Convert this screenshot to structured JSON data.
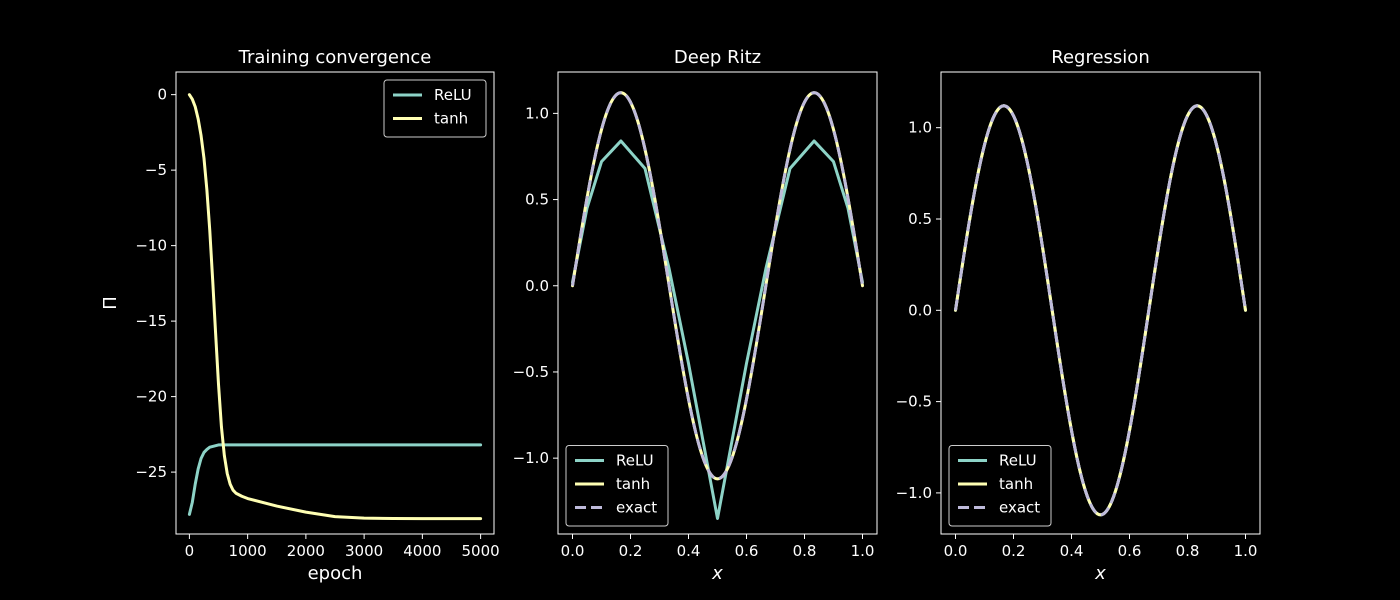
{
  "figure": {
    "background": "#000000",
    "foreground": "#ffffff"
  },
  "chart_data": [
    {
      "type": "line",
      "title": "Training convergence",
      "xlabel": "epoch",
      "ylabel": "Π",
      "xlim": [
        -230,
        5230
      ],
      "ylim": [
        -29.1,
        1.5
      ],
      "xticks": [
        0,
        1000,
        2000,
        3000,
        4000,
        5000
      ],
      "xtick_labels": [
        "0",
        "1000",
        "2000",
        "3000",
        "4000",
        "5000"
      ],
      "yticks": [
        0,
        -5,
        -10,
        -15,
        -20,
        -25
      ],
      "ytick_labels": [
        "0",
        "−5",
        "−10",
        "−15",
        "−20",
        "−25"
      ],
      "legend_position": "upper right",
      "grid": false,
      "series": [
        {
          "name": "ReLU",
          "color": "#8dd3c7",
          "dashed": false,
          "x": [
            0,
            50,
            100,
            150,
            200,
            250,
            300,
            350,
            400,
            450,
            500,
            600,
            800,
            1000,
            2000,
            3000,
            4000,
            5000
          ],
          "y": [
            -27.8,
            -27.0,
            -25.8,
            -24.8,
            -24.1,
            -23.7,
            -23.5,
            -23.35,
            -23.3,
            -23.25,
            -23.2,
            -23.2,
            -23.2,
            -23.2,
            -23.2,
            -23.2,
            -23.2,
            -23.2
          ]
        },
        {
          "name": "tanh",
          "color": "#ffffb3",
          "dashed": false,
          "x": [
            0,
            50,
            100,
            150,
            200,
            250,
            300,
            350,
            400,
            450,
            500,
            550,
            600,
            650,
            700,
            750,
            800,
            900,
            1000,
            1500,
            2000,
            2500,
            3000,
            3500,
            4000,
            4500,
            5000
          ],
          "y": [
            0,
            -0.3,
            -0.8,
            -1.6,
            -2.7,
            -4.2,
            -6.3,
            -9.0,
            -12.3,
            -15.8,
            -19.2,
            -22.0,
            -23.9,
            -25.1,
            -25.8,
            -26.2,
            -26.4,
            -26.6,
            -26.75,
            -27.25,
            -27.65,
            -27.95,
            -28.05,
            -28.07,
            -28.08,
            -28.08,
            -28.08
          ]
        }
      ]
    },
    {
      "type": "line",
      "title": "Deep Ritz",
      "xlabel": "x",
      "ylabel": "",
      "xlim": [
        -0.05,
        1.05
      ],
      "ylim": [
        -1.44,
        1.24
      ],
      "xticks": [
        0,
        0.2,
        0.4,
        0.6,
        0.8,
        1.0
      ],
      "xtick_labels": [
        "0.0",
        "0.2",
        "0.4",
        "0.6",
        "0.8",
        "1.0"
      ],
      "yticks": [
        1.0,
        0.5,
        0.0,
        -0.5,
        -1.0
      ],
      "ytick_labels": [
        "1.0",
        "0.5",
        "0.0",
        "−0.5",
        "−1.0"
      ],
      "legend_position": "lower left",
      "grid": false,
      "series": [
        {
          "name": "ReLU",
          "color": "#8dd3c7",
          "dashed": false,
          "x": [
            0,
            0.05,
            0.1,
            0.167,
            0.25,
            0.333,
            0.4,
            0.45,
            0.5,
            0.55,
            0.6,
            0.667,
            0.75,
            0.833,
            0.9,
            0.95,
            1.0
          ],
          "y": [
            0.02,
            0.45,
            0.72,
            0.84,
            0.68,
            0.1,
            -0.45,
            -0.9,
            -1.35,
            -0.9,
            -0.45,
            0.1,
            0.68,
            0.84,
            0.72,
            0.45,
            0.02
          ]
        },
        {
          "name": "tanh",
          "color": "#ffffb3",
          "dashed": false,
          "function": "exact"
        },
        {
          "name": "exact",
          "color": "#bebada",
          "dashed": true,
          "function": "exact"
        }
      ]
    },
    {
      "type": "line",
      "title": "Regression",
      "xlabel": "x",
      "ylabel": "",
      "xlim": [
        -0.05,
        1.05
      ],
      "ylim": [
        -1.225,
        1.305
      ],
      "xticks": [
        0,
        0.2,
        0.4,
        0.6,
        0.8,
        1.0
      ],
      "xtick_labels": [
        "0.0",
        "0.2",
        "0.4",
        "0.6",
        "0.8",
        "1.0"
      ],
      "yticks": [
        1.0,
        0.5,
        0.0,
        -0.5,
        -1.0
      ],
      "ytick_labels": [
        "1.0",
        "0.5",
        "0.0",
        "−0.5",
        "−1.0"
      ],
      "legend_position": "lower left",
      "grid": false,
      "series": [
        {
          "name": "ReLU",
          "color": "#8dd3c7",
          "dashed": false,
          "function": "exact"
        },
        {
          "name": "tanh",
          "color": "#ffffb3",
          "dashed": false,
          "function": "exact"
        },
        {
          "name": "exact",
          "color": "#bebada",
          "dashed": true,
          "function": "exact"
        }
      ]
    }
  ]
}
